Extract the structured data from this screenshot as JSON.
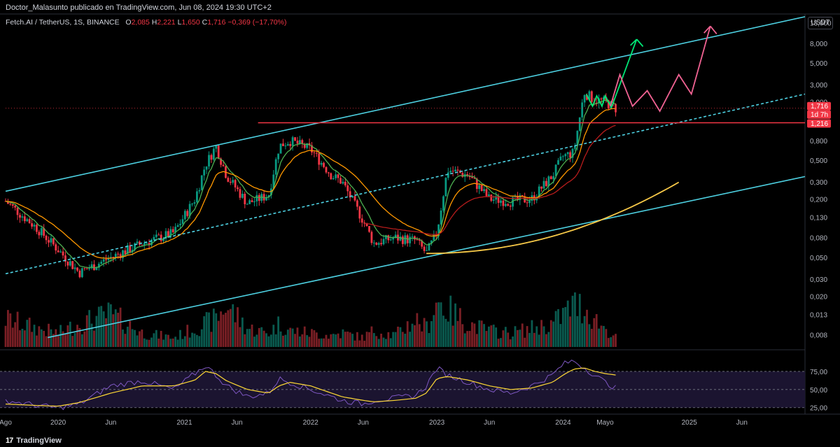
{
  "header": {
    "attribution": "Doctor_Malasunto publicado en TradingView.com, Jun 08, 2024 19:30 UTC+2"
  },
  "symbol_line": {
    "name": "Fetch.AI / TetherUS, 1S, BINANCE",
    "o_label": "O",
    "o_value": "2,085",
    "h_label": "H",
    "h_value": "2,221",
    "l_label": "L",
    "l_value": "1,650",
    "c_label": "C",
    "c_value": "1,716",
    "change": "−0,369 (−17,70%)"
  },
  "price_axis": {
    "unit": "USDT",
    "ticks": [
      "13,000",
      "8,000",
      "5,000",
      "3,000",
      "2,000",
      "0,800",
      "0,500",
      "0,300",
      "0,200",
      "0,130",
      "0,080",
      "0,050",
      "0,030",
      "0,020",
      "0,013",
      "0,008"
    ],
    "tick_values": [
      13,
      8,
      5,
      3,
      2,
      0.8,
      0.5,
      0.3,
      0.2,
      0.13,
      0.08,
      0.05,
      0.03,
      0.02,
      0.013,
      0.008
    ],
    "badges": [
      {
        "text": "1,716",
        "value": 1.716,
        "color": "#f23645"
      },
      {
        "text": "1d 7h",
        "value": 1.716,
        "color": "#f23645"
      },
      {
        "text": "1,216",
        "value": 1.216,
        "color": "#f23645"
      }
    ]
  },
  "rsi_axis": {
    "ticks": [
      "75,00",
      "50,00",
      "25,00"
    ],
    "tick_values": [
      75,
      50,
      25
    ]
  },
  "time_axis": {
    "labels": [
      "Ago",
      "2020",
      "Jun",
      "2021",
      "Jun",
      "2022",
      "Jun",
      "2023",
      "Jun",
      "2024",
      "Mayo",
      "2025",
      "Jun"
    ]
  },
  "brand": {
    "logo": "17",
    "name": "TradingView"
  },
  "colors": {
    "up": "#089981",
    "down": "#f23645",
    "channel": "#4dd0e1",
    "curve": "#f7c948",
    "ema_fast": "#4caf50",
    "ema_slow": "#ff9800",
    "ma_long": "#b71c1c",
    "hline": "#f23645",
    "rsi": "#7e57c2",
    "rsi_ma": "#fdd835",
    "arrow_green": "#00e676",
    "arrow_red": "#f06292"
  },
  "chart_data": {
    "type": "line",
    "scale": "log",
    "title": "Fetch.AI / TetherUS, 1S, BINANCE",
    "x": [
      "2019-08",
      "2019-11",
      "2020-01",
      "2020-03",
      "2020-06",
      "2020-09",
      "2020-12",
      "2021-02",
      "2021-03",
      "2021-04",
      "2021-05",
      "2021-07",
      "2021-09",
      "2021-10",
      "2021-11",
      "2022-01",
      "2022-03",
      "2022-04",
      "2022-06",
      "2022-07",
      "2022-09",
      "2022-11",
      "2022-12",
      "2023-01",
      "2023-02",
      "2023-04",
      "2023-06",
      "2023-08",
      "2023-10",
      "2023-12",
      "2024-01",
      "2024-02",
      "2024-03",
      "2024-04",
      "2024-05",
      "2024-06"
    ],
    "series": [
      {
        "values": [
          0.19,
          0.1,
          0.06,
          0.035,
          0.05,
          0.07,
          0.09,
          0.2,
          0.45,
          0.7,
          0.35,
          0.18,
          0.22,
          0.7,
          0.8,
          0.65,
          0.35,
          0.3,
          0.12,
          0.07,
          0.08,
          0.075,
          0.055,
          0.09,
          0.4,
          0.35,
          0.2,
          0.19,
          0.2,
          0.35,
          0.55,
          0.6,
          2.5,
          2.1,
          2.0,
          1.716
        ]
      }
    ],
    "horizontal_line": 1.216,
    "ylim": [
      0.006,
      16
    ],
    "volume": [
      0.6,
      0.4,
      0.3,
      0.5,
      0.7,
      0.3,
      0.2,
      0.4,
      0.5,
      0.6,
      0.9,
      0.4,
      0.3,
      0.5,
      0.35,
      0.3,
      0.25,
      0.3,
      0.2,
      0.35,
      0.25,
      0.6,
      0.4,
      1.0,
      0.8,
      0.5,
      0.35,
      0.3,
      0.4,
      0.5,
      0.7,
      0.9,
      0.85,
      0.6,
      0.4,
      0.2
    ],
    "rsi": {
      "values": [
        35,
        28,
        25,
        30,
        55,
        62,
        50,
        72,
        83,
        70,
        55,
        40,
        45,
        65,
        60,
        50,
        40,
        35,
        30,
        35,
        38,
        42,
        55,
        80,
        70,
        60,
        50,
        45,
        55,
        70,
        85,
        90,
        80,
        70,
        60,
        52
      ],
      "ma": [
        30,
        28,
        27,
        32,
        45,
        55,
        55,
        63,
        75,
        72,
        62,
        50,
        45,
        55,
        60,
        55,
        45,
        40,
        35,
        33,
        35,
        38,
        45,
        65,
        68,
        63,
        55,
        50,
        52,
        60,
        70,
        78,
        80,
        75,
        72,
        70
      ],
      "ylim": [
        18,
        100
      ]
    }
  }
}
